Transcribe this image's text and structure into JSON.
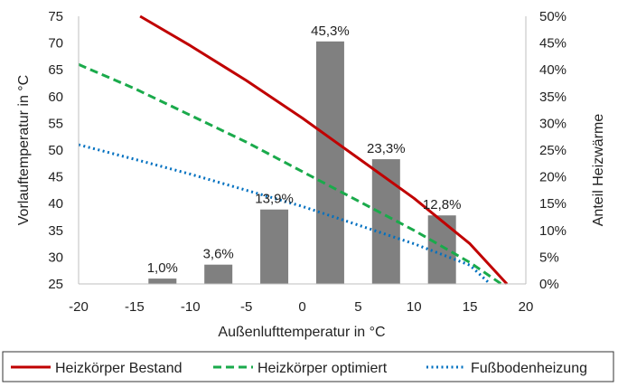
{
  "chart_data": {
    "type": "bar+line",
    "xlabel": "Außenlufttemperatur in °C",
    "ylabel_left": "Vorlauftemperatur in °C",
    "ylabel_right": "Anteil Heizwärme",
    "xlim": [
      -20,
      20
    ],
    "ylim_left": [
      25,
      75
    ],
    "ylim_right": [
      0,
      50
    ],
    "x_ticks": [
      "-20",
      "-15",
      "-10",
      "-5",
      "0",
      "5",
      "10",
      "15",
      "20"
    ],
    "y_left_ticks": [
      "25",
      "30",
      "35",
      "40",
      "45",
      "50",
      "55",
      "60",
      "65",
      "70",
      "75"
    ],
    "y_right_ticks": [
      "0%",
      "5%",
      "10%",
      "15%",
      "20%",
      "25%",
      "30%",
      "35%",
      "40%",
      "45%",
      "50%"
    ],
    "grid": false,
    "bars": {
      "color": "#808080",
      "axis": "right",
      "x_centers": [
        -12.5,
        -7.5,
        -2.5,
        2.5,
        7.5,
        12.5
      ],
      "values": [
        1.0,
        3.6,
        13.9,
        45.3,
        23.3,
        12.8
      ],
      "labels": [
        "1,0%",
        "3,6%",
        "13,9%",
        "45,3%",
        "23,3%",
        "12,8%"
      ]
    },
    "series": [
      {
        "name": "Heizkörper Bestand",
        "color": "#c00000",
        "dash": "solid",
        "x": [
          -14.5,
          -10,
          -5,
          0,
          5,
          10,
          15,
          18.3
        ],
        "y": [
          75,
          69.5,
          63,
          56,
          48.5,
          41,
          32.5,
          25
        ]
      },
      {
        "name": "Heizkörper optimiert",
        "color": "#1aaa4b",
        "dash": "dashed",
        "x": [
          -20,
          -15,
          -10,
          -5,
          0,
          5,
          10,
          15,
          17.8
        ],
        "y": [
          66,
          61.5,
          56.5,
          51.5,
          46,
          40.5,
          35,
          29,
          25
        ]
      },
      {
        "name": "Fußbodenheizung",
        "color": "#0070c0",
        "dash": "dotted",
        "x": [
          -20,
          -15,
          -10,
          -5,
          0,
          5,
          10,
          15,
          16.8
        ],
        "y": [
          51,
          48.3,
          45.5,
          42.5,
          39.5,
          36,
          32.5,
          28.5,
          25
        ]
      }
    ],
    "legend_position": "bottom"
  }
}
